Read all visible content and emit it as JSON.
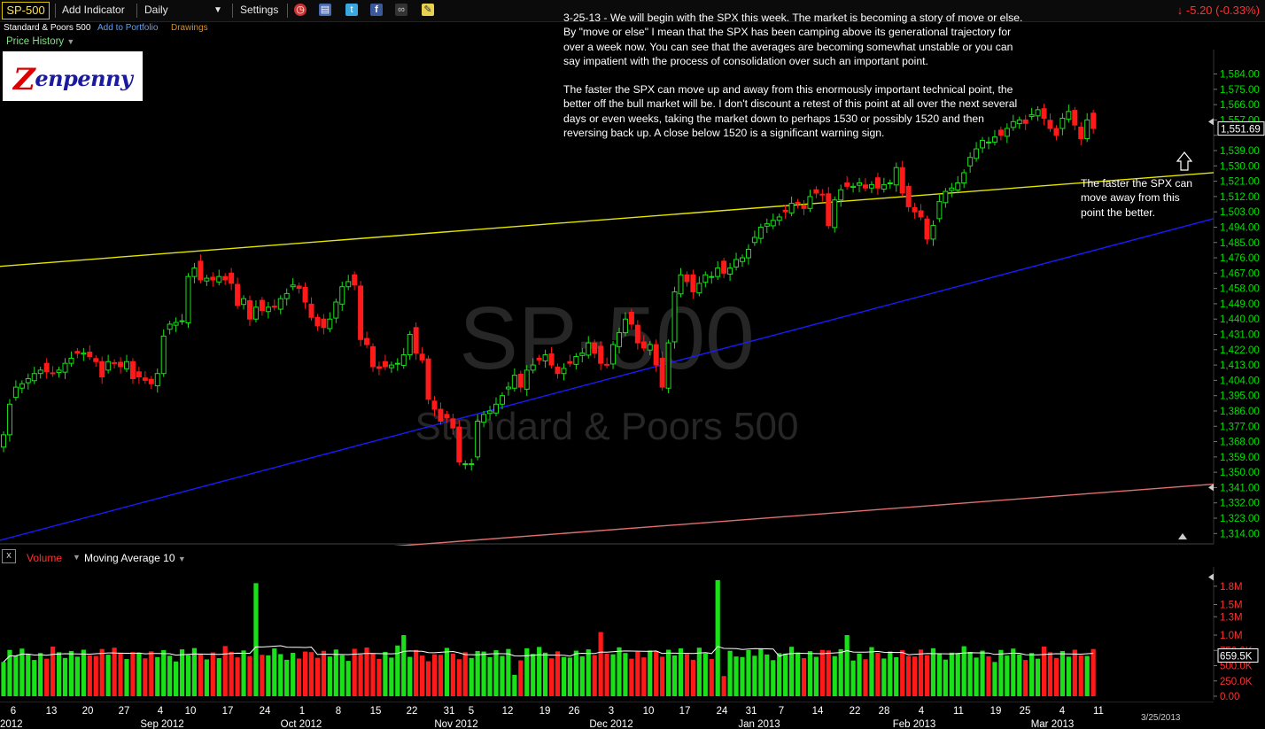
{
  "toolbar": {
    "symbol": "SP-500",
    "add_indicator": "Add Indicator",
    "interval": "Daily",
    "settings": "Settings",
    "change_text": "-5.20 (-0.33%)"
  },
  "subheader": {
    "name": "Standard & Poors 500",
    "add_portfolio": "Add to Portfolio",
    "drawings": "Drawings",
    "price_history": "Price History"
  },
  "logo": {
    "text": "enpenny",
    "initial": "Z"
  },
  "watermark": {
    "symbol": "SP-500",
    "name": "Standard & Poors 500"
  },
  "annotation": {
    "paragraph1": "3-25-13 - We will begin with the SPX this week. The market is becoming a story of move or else. By \"move or else\" I mean that the SPX has been camping above its generational trajectory for over a week now. You can see that the averages are becoming somewhat unstable or you can say impatient with the process of consolidation over such an important point.",
    "paragraph2": "The faster the SPX can move up and away from this enormously important technical point, the better off the bull market will be. I don't discount a retest of this point at all over the next several days or even weeks, taking the market down to perhaps 1530 or possibly 1520 and then reversing back up. A close below 1520 is a significant warning sign.",
    "callout": "The faster the SPX can move away from this point the better."
  },
  "volume_panel": {
    "label": "Volume",
    "ma_label": "Moving Average 10",
    "close_icon": "x"
  },
  "colors": {
    "up": "#19e019",
    "down": "#ff1a1a",
    "yellow_line": "#e6e600",
    "blue_line": "#1a1aff",
    "pink_line": "#e07070",
    "axis_green": "#00e000",
    "axis_red": "#ff3030"
  },
  "chart_data": [
    {
      "type": "candlestick",
      "title": "SP-500",
      "y_ticks": [
        1584,
        1575,
        1566,
        1557,
        1548,
        1539,
        1530,
        1521,
        1512,
        1503,
        1494,
        1485,
        1476,
        1467,
        1458,
        1449,
        1440,
        1431,
        1422,
        1413,
        1404,
        1395,
        1386,
        1377,
        1368,
        1359,
        1350,
        1341,
        1332,
        1323,
        1314
      ],
      "y_tick_labels": [
        "1,584.00",
        "1,575.00",
        "1,566.00",
        "1,557.00",
        "",
        "1,539.00",
        "1,530.00",
        "1,521.00",
        "1,512.00",
        "1,503.00",
        "1,494.00",
        "1,485.00",
        "1,476.00",
        "1,467.00",
        "1,458.00",
        "1,449.00",
        "1,440.00",
        "1,431.00",
        "1,422.00",
        "1,413.00",
        "1,404.00",
        "1,395.00",
        "1,386.00",
        "1,377.00",
        "1,368.00",
        "1,359.00",
        "1,350.00",
        "1,341.00",
        "1,332.00",
        "1,323.00",
        "1,314.00"
      ],
      "ylim": [
        1310,
        1590
      ],
      "last_price": "1,551.69",
      "closes": [
        1372,
        1390,
        1400,
        1402,
        1405,
        1408,
        1410,
        1409,
        1408,
        1410,
        1414,
        1417,
        1420,
        1420,
        1418,
        1415,
        1406,
        1415,
        1414,
        1412,
        1415,
        1405,
        1406,
        1404,
        1402,
        1408,
        1430,
        1437,
        1438,
        1439,
        1465,
        1470,
        1463,
        1464,
        1463,
        1465,
        1463,
        1461,
        1448,
        1452,
        1440,
        1447,
        1445,
        1447,
        1447,
        1452,
        1455,
        1460,
        1458,
        1450,
        1441,
        1436,
        1435,
        1440,
        1450,
        1459,
        1462,
        1460,
        1428,
        1425,
        1412,
        1411,
        1412,
        1413,
        1414,
        1419,
        1431,
        1420,
        1416,
        1393,
        1387,
        1380,
        1382,
        1376,
        1356,
        1355,
        1355,
        1380,
        1384,
        1386,
        1390,
        1395,
        1400,
        1407,
        1400,
        1410,
        1413,
        1416,
        1419,
        1413,
        1408,
        1411,
        1414,
        1418,
        1420,
        1426,
        1420,
        1414,
        1413,
        1425,
        1432,
        1440,
        1437,
        1426,
        1423,
        1425,
        1413,
        1400,
        1426,
        1456,
        1466,
        1462,
        1456,
        1461,
        1466,
        1465,
        1470,
        1467,
        1470,
        1475,
        1476,
        1481,
        1488,
        1494,
        1496,
        1498,
        1500,
        1503,
        1508,
        1508,
        1505,
        1512,
        1514,
        1513,
        1495,
        1510,
        1516,
        1518,
        1518,
        1520,
        1517,
        1519,
        1517,
        1519,
        1520,
        1529,
        1514,
        1506,
        1503,
        1500,
        1487,
        1495,
        1509,
        1515,
        1517,
        1520,
        1526,
        1535,
        1540,
        1545,
        1544,
        1547,
        1548,
        1552,
        1556,
        1557,
        1555,
        1560,
        1563,
        1558,
        1552,
        1548,
        1558,
        1562,
        1554,
        1546,
        1557,
        1552
      ],
      "overlays": [
        {
          "name": "yellow trendline",
          "from": 1471,
          "to": 1526
        },
        {
          "name": "blue trendline",
          "from": 1310,
          "to": 1499
        },
        {
          "name": "pink trendline",
          "from": 1289,
          "to": 1343
        }
      ]
    },
    {
      "type": "bar",
      "title": "Volume",
      "y_ticks": [
        0,
        250000,
        500000,
        750000,
        1000000,
        1300000,
        1500000,
        1800000
      ],
      "y_tick_labels": [
        "0.00",
        "250.0K",
        "500.0K",
        "750.0K",
        "1.0M",
        "1.3M",
        "1.5M",
        "1.8M"
      ],
      "ylim": [
        0,
        2000000
      ],
      "last_value": "659.5K",
      "ma_period": 10
    }
  ],
  "x_axis": {
    "day_labels": [
      "6",
      "13",
      "20",
      "27",
      "4",
      "10",
      "17",
      "24",
      "1",
      "8",
      "15",
      "22",
      "31",
      "5",
      "12",
      "19",
      "26",
      "3",
      "10",
      "17",
      "24",
      "31",
      "7",
      "14",
      "22",
      "28",
      "4",
      "11",
      "19",
      "25",
      "4",
      "11"
    ],
    "month_labels": [
      "2012",
      "Sep 2012",
      "Oct 2012",
      "Nov 2012",
      "Dec 2012",
      "Jan 2013",
      "Feb 2013",
      "Mar 2013"
    ],
    "date_label": "3/25/2013"
  }
}
